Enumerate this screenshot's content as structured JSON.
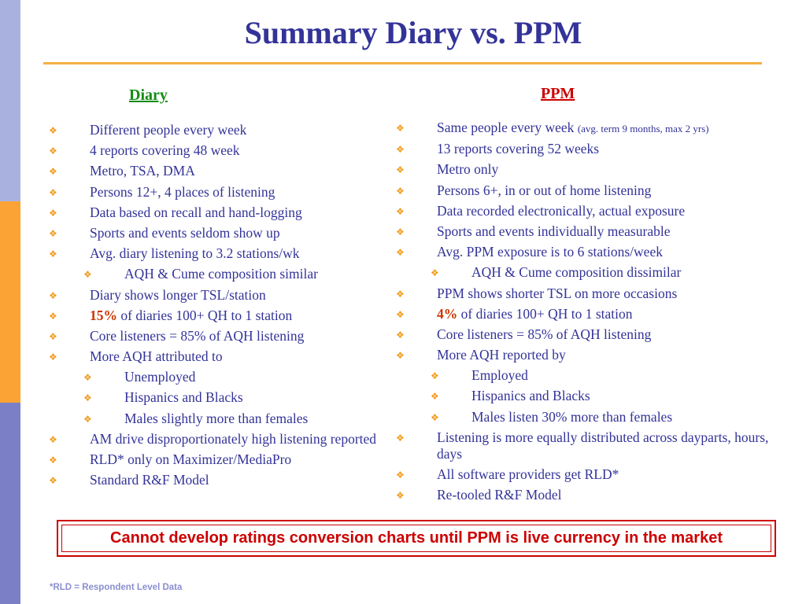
{
  "title": "Summary Diary vs. PPM",
  "colors": {
    "title": "#333399",
    "diary_heading": "#148C14",
    "ppm_heading": "#CC0000",
    "bullet": "#F29C1F",
    "highlight": "#CC3300",
    "rule": "#F6B044",
    "side_bars": [
      "#A9B2DE",
      "#FBA435",
      "#7B80C6"
    ]
  },
  "bullet_icon": "diamond-quad-bullet-icon",
  "diary": {
    "heading": "Diary",
    "items": [
      {
        "text": "Different people every week"
      },
      {
        "text": "4 reports covering 48 week"
      },
      {
        "text": "Metro, TSA, DMA"
      },
      {
        "text": "Persons 12+, 4 places of listening"
      },
      {
        "text": "Data based on recall and hand-logging"
      },
      {
        "text": "Sports and events seldom show up"
      },
      {
        "text": "Avg. diary listening to 3.2 stations/wk"
      },
      {
        "text": "AQH & Cume composition similar",
        "sub": true
      },
      {
        "text": "Diary shows longer TSL/station"
      },
      {
        "highlight": "15%",
        "text": " of diaries 100+ QH to 1 station"
      },
      {
        "text": "Core listeners = 85% of AQH listening"
      },
      {
        "text": "More AQH attributed to"
      },
      {
        "text": "Unemployed",
        "sub": true
      },
      {
        "text": "Hispanics and Blacks",
        "sub": true
      },
      {
        "text": "Males slightly more than females",
        "sub": true
      },
      {
        "text": "AM drive disproportionately high listening reported"
      },
      {
        "text": "RLD* only on Maximizer/MediaPro"
      },
      {
        "text": "Standard R&F Model"
      }
    ]
  },
  "ppm": {
    "heading": "PPM",
    "items": [
      {
        "text": "Same people every week ",
        "small": "(avg. term 9 months, max 2 yrs)"
      },
      {
        "text": "13 reports covering 52 weeks"
      },
      {
        "text": "Metro only"
      },
      {
        "text": "Persons 6+, in or out of home listening"
      },
      {
        "text": "Data recorded electronically, actual exposure"
      },
      {
        "text": "Sports and events individually measurable"
      },
      {
        "text": "Avg. PPM exposure is to 6 stations/week"
      },
      {
        "text": "AQH & Cume composition dissimilar",
        "sub": true
      },
      {
        "text": "PPM shows shorter TSL on more occasions"
      },
      {
        "highlight": "4%",
        "text": " of diaries 100+ QH to 1 station"
      },
      {
        "text": "Core listeners = 85% of AQH listening"
      },
      {
        "text": "More AQH reported by"
      },
      {
        "text": "Employed",
        "sub": true
      },
      {
        "text": "Hispanics and Blacks",
        "sub": true
      },
      {
        "text": "Males listen 30% more than females",
        "sub": true
      },
      {
        "text": "Listening is more equally distributed across dayparts, hours, days"
      },
      {
        "text": "All software providers get RLD*"
      },
      {
        "text": "Re-tooled R&F Model"
      }
    ]
  },
  "banner": "Cannot develop ratings conversion charts until PPM is live currency in the market",
  "footnote": "*RLD = Respondent Level Data"
}
